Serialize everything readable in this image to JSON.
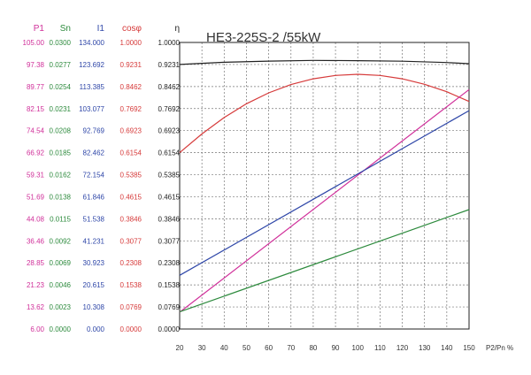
{
  "chart_data": {
    "type": "line",
    "title": "HE3-225S-2  /55kW",
    "xlabel": "P2/Pn %",
    "x_ticks": [
      "20",
      "30",
      "40",
      "50",
      "60",
      "70",
      "80",
      "90",
      "100",
      "110",
      "120",
      "130",
      "140",
      "150"
    ],
    "xlim": [
      20,
      150
    ],
    "grid": true,
    "axes_columns": [
      {
        "name": "P1",
        "color": "#d0309a",
        "ticks": [
          "105.00",
          "97.38",
          "89.77",
          "82.15",
          "74.54",
          "66.92",
          "59.31",
          "51.69",
          "44.08",
          "36.46",
          "28.85",
          "21.23",
          "13.62",
          "6.00"
        ]
      },
      {
        "name": "Sn",
        "color": "#2e8b3e",
        "ticks": [
          "0.0300",
          "0.0277",
          "0.0254",
          "0.0231",
          "0.0208",
          "0.0185",
          "0.0162",
          "0.0138",
          "0.0115",
          "0.0092",
          "0.0069",
          "0.0046",
          "0.0023",
          "0.0000"
        ]
      },
      {
        "name": "I1",
        "color": "#2f47a8",
        "ticks": [
          "134.000",
          "123.692",
          "113.385",
          "103.077",
          "92.769",
          "82.462",
          "72.154",
          "61.846",
          "51.538",
          "41.231",
          "30.923",
          "20.615",
          "10.308",
          "0.000"
        ]
      },
      {
        "name": "cosφ",
        "color": "#d63a3a",
        "ticks": [
          "1.0000",
          "0.9231",
          "0.8462",
          "0.7692",
          "0.6923",
          "0.6154",
          "0.5385",
          "0.4615",
          "0.3846",
          "0.3077",
          "0.2308",
          "0.1538",
          "0.0769",
          "0.0000"
        ]
      },
      {
        "name": "η",
        "color": "#222222",
        "ticks": [
          "1.0000",
          "0.9231",
          "0.8462",
          "0.7692",
          "0.6923",
          "0.6154",
          "0.5385",
          "0.4615",
          "0.3846",
          "0.3077",
          "0.2308",
          "0.1538",
          "0.0769",
          "0.0000"
        ]
      }
    ],
    "series": [
      {
        "axis": "η",
        "color": "#222222",
        "x": [
          20,
          40,
          60,
          80,
          100,
          120,
          140,
          150
        ],
        "y": [
          0.9231,
          0.931,
          0.935,
          0.9372,
          0.9365,
          0.9345,
          0.93,
          0.926
        ]
      },
      {
        "axis": "cosφ",
        "color": "#d63a3a",
        "x": [
          20,
          30,
          40,
          50,
          60,
          70,
          80,
          90,
          100,
          110,
          120,
          130,
          140,
          150
        ],
        "y": [
          0.6154,
          0.681,
          0.738,
          0.786,
          0.824,
          0.853,
          0.873,
          0.885,
          0.889,
          0.885,
          0.873,
          0.854,
          0.828,
          0.794
        ]
      },
      {
        "axis": "P1",
        "color": "#d0309a",
        "x": [
          20,
          150
        ],
        "y": [
          11.8,
          88.7
        ]
      },
      {
        "axis": "I1",
        "color": "#2f47a8",
        "x": [
          20,
          150
        ],
        "y": [
          25.1,
          102.1
        ]
      },
      {
        "axis": "Sn",
        "color": "#2e8b3e",
        "x": [
          20,
          150
        ],
        "y": [
          0.0018,
          0.0125
        ]
      }
    ]
  }
}
